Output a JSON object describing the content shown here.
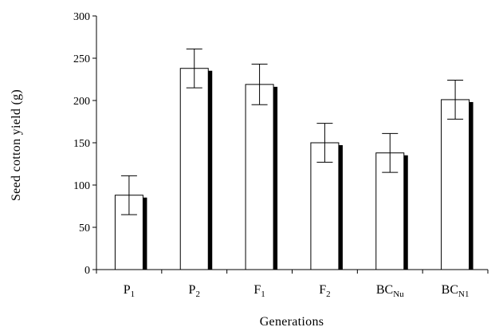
{
  "chart_data": {
    "type": "bar",
    "title": "",
    "xlabel": "Generations",
    "ylabel": "Seed cotton yield (g)",
    "ylim": [
      0,
      300
    ],
    "yticks": [
      0,
      50,
      100,
      150,
      200,
      250,
      300
    ],
    "categories": [
      {
        "base": "P",
        "sub": "1"
      },
      {
        "base": "P",
        "sub": "2"
      },
      {
        "base": "F",
        "sub": "1"
      },
      {
        "base": "F",
        "sub": "2"
      },
      {
        "base": "BC",
        "sub": "Nu"
      },
      {
        "base": "BC",
        "sub": "N1"
      }
    ],
    "values": [
      88,
      238,
      219,
      150,
      138,
      201
    ],
    "error": [
      23,
      23,
      24,
      23,
      23,
      23
    ],
    "bar_fill": "#ffffff",
    "bar_shadow_color": "#000000",
    "grid": false,
    "legend": "none"
  }
}
